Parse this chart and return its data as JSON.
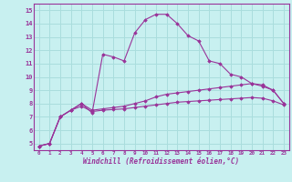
{
  "xlabel": "Windchill (Refroidissement éolien,°C)",
  "background_color": "#c8f0f0",
  "grid_color": "#aadddd",
  "line_color": "#993399",
  "xlim": [
    -0.5,
    23.5
  ],
  "ylim": [
    4.5,
    15.5
  ],
  "xticks": [
    0,
    1,
    2,
    3,
    4,
    5,
    6,
    7,
    8,
    9,
    10,
    11,
    12,
    13,
    14,
    15,
    16,
    17,
    18,
    19,
    20,
    21,
    22,
    23
  ],
  "yticks": [
    5,
    6,
    7,
    8,
    9,
    10,
    11,
    12,
    13,
    14,
    15
  ],
  "curve1_x": [
    0,
    1,
    2,
    3,
    4,
    5,
    6,
    7,
    8,
    9,
    10,
    11,
    12,
    13,
    14,
    15,
    16,
    17,
    18,
    19,
    20,
    21,
    22,
    23
  ],
  "curve1_y": [
    4.8,
    5.0,
    7.0,
    7.5,
    8.0,
    7.3,
    11.7,
    11.5,
    11.2,
    13.3,
    14.3,
    14.7,
    14.7,
    14.0,
    13.1,
    12.7,
    11.2,
    11.0,
    10.2,
    10.0,
    9.5,
    9.4,
    9.0,
    8.0
  ],
  "curve2_x": [
    0,
    1,
    2,
    3,
    4,
    5,
    6,
    7,
    8,
    9,
    10,
    11,
    12,
    13,
    14,
    15,
    16,
    17,
    18,
    19,
    20,
    21,
    22,
    23
  ],
  "curve2_y": [
    4.8,
    5.0,
    7.0,
    7.5,
    8.0,
    7.5,
    7.6,
    7.7,
    7.8,
    8.0,
    8.2,
    8.5,
    8.7,
    8.8,
    8.9,
    9.0,
    9.1,
    9.2,
    9.3,
    9.4,
    9.5,
    9.3,
    9.0,
    8.0
  ],
  "curve3_x": [
    0,
    1,
    2,
    3,
    4,
    5,
    6,
    7,
    8,
    9,
    10,
    11,
    12,
    13,
    14,
    15,
    16,
    17,
    18,
    19,
    20,
    21,
    22,
    23
  ],
  "curve3_y": [
    4.8,
    5.0,
    7.0,
    7.5,
    7.8,
    7.4,
    7.5,
    7.55,
    7.6,
    7.7,
    7.8,
    7.9,
    8.0,
    8.1,
    8.15,
    8.2,
    8.25,
    8.3,
    8.35,
    8.4,
    8.45,
    8.4,
    8.2,
    7.9
  ]
}
